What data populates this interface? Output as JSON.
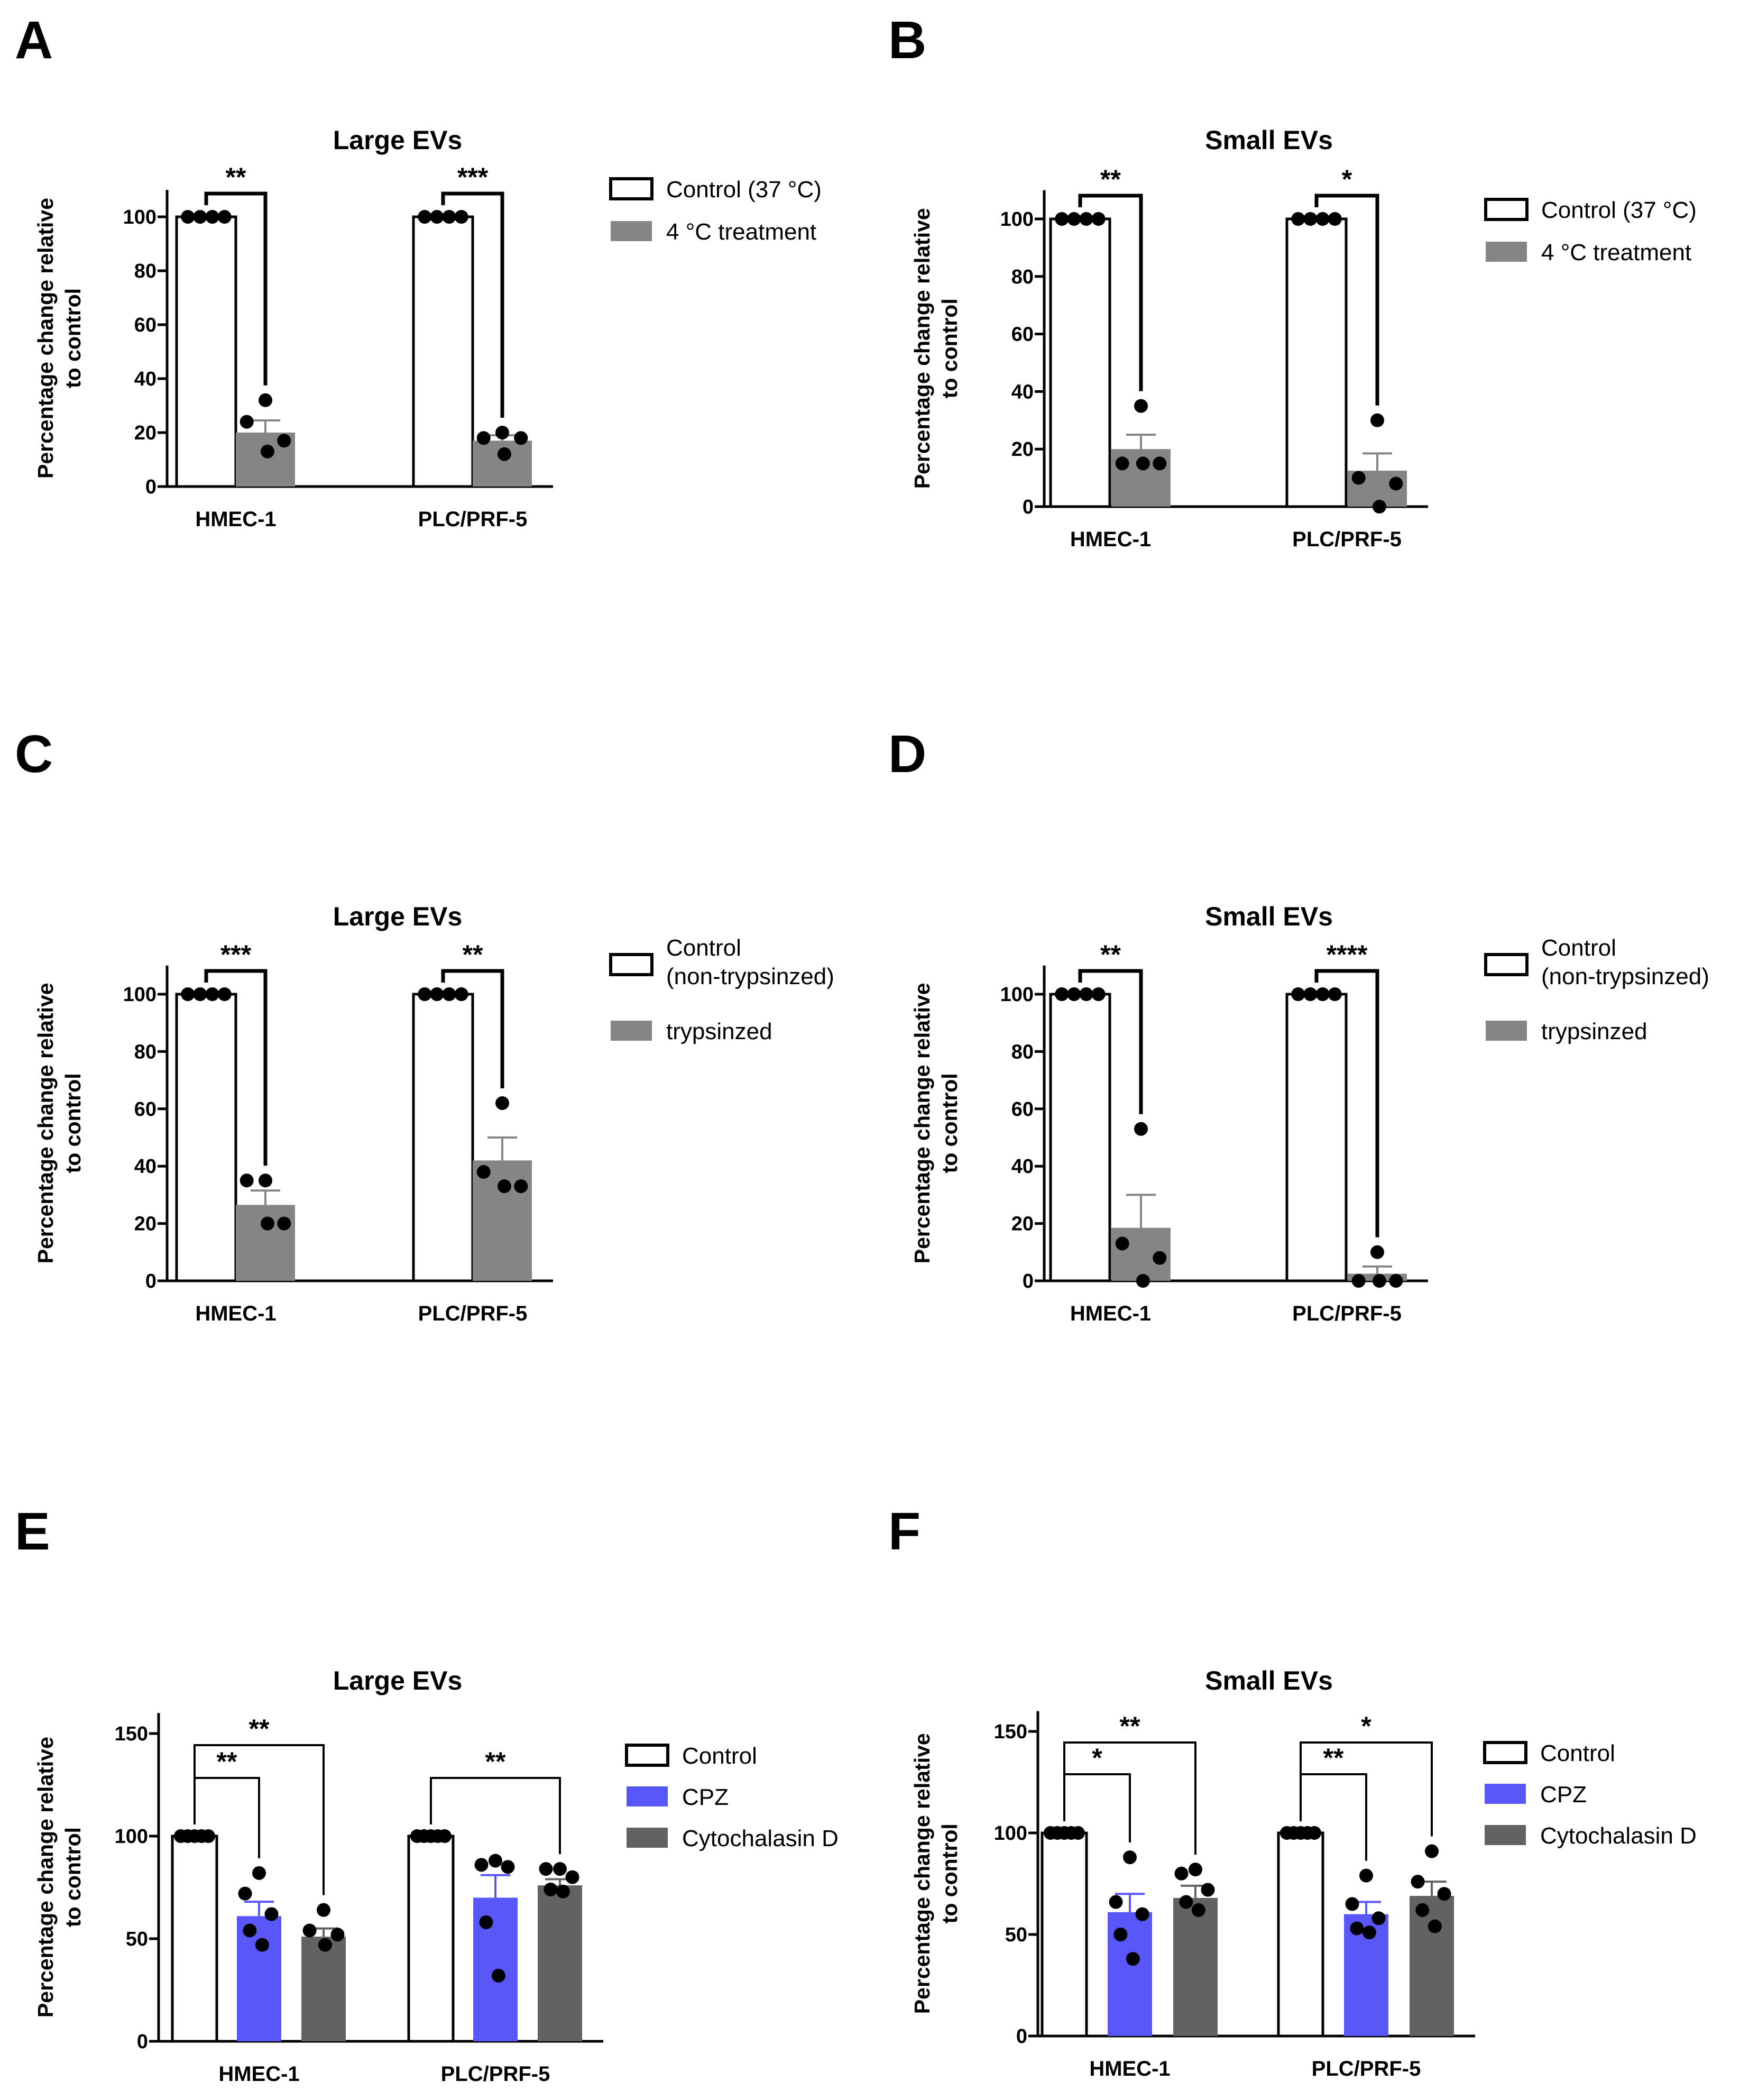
{
  "chart_data": [
    {
      "panel": "A",
      "type": "bar",
      "title": "Large EVs",
      "ylabel": [
        "Percentage change relative",
        "to control"
      ],
      "ylim": [
        0,
        110
      ],
      "yticks": [
        0,
        20,
        40,
        60,
        80,
        100
      ],
      "categories": [
        "HMEC-1",
        "PLC/PRF-5"
      ],
      "series": [
        {
          "name": "Control (37 °C)",
          "color": "#ffffff",
          "values": [
            100,
            100
          ],
          "sem": [
            0,
            0
          ],
          "points": [
            [
              100,
              100,
              100,
              100
            ],
            [
              100,
              100,
              100,
              100
            ]
          ]
        },
        {
          "name": "4 °C treatment",
          "color": "#858585",
          "values": [
            20,
            17
          ],
          "sem": [
            4.5,
            2
          ],
          "points": [
            [
              32,
              24,
              17,
              13
            ],
            [
              20,
              18,
              18,
              12
            ]
          ]
        }
      ],
      "significance": [
        {
          "category": 0,
          "from": 0,
          "to": 1,
          "label": "**"
        },
        {
          "category": 1,
          "from": 0,
          "to": 1,
          "label": "***"
        }
      ]
    },
    {
      "panel": "B",
      "type": "bar",
      "title": "Small EVs",
      "ylabel": [
        "Percentage change relative",
        "to control"
      ],
      "ylim": [
        0,
        110
      ],
      "yticks": [
        0,
        20,
        40,
        60,
        80,
        100
      ],
      "categories": [
        "HMEC-1",
        "PLC/PRF-5"
      ],
      "series": [
        {
          "name": "Control (37 °C)",
          "color": "#ffffff",
          "values": [
            100,
            100
          ],
          "sem": [
            0,
            0
          ],
          "points": [
            [
              100,
              100,
              100,
              100
            ],
            [
              100,
              100,
              100,
              100
            ]
          ]
        },
        {
          "name": "4 °C treatment",
          "color": "#858585",
          "values": [
            20,
            12.5
          ],
          "sem": [
            5,
            6
          ],
          "points": [
            [
              35,
              15,
              15,
              15
            ],
            [
              30,
              10,
              8,
              0
            ]
          ]
        }
      ],
      "significance": [
        {
          "category": 0,
          "from": 0,
          "to": 1,
          "label": "**"
        },
        {
          "category": 1,
          "from": 0,
          "to": 1,
          "label": "*"
        }
      ]
    },
    {
      "panel": "C",
      "type": "bar",
      "title": "Large EVs",
      "ylabel": [
        "Percentage change relative",
        "to control"
      ],
      "ylim": [
        0,
        110
      ],
      "yticks": [
        0,
        20,
        40,
        60,
        80,
        100
      ],
      "categories": [
        "HMEC-1",
        "PLC/PRF-5"
      ],
      "series": [
        {
          "name": "Control (non-trypsinzed)",
          "color": "#ffffff",
          "values": [
            100,
            100
          ],
          "sem": [
            0,
            0
          ],
          "points": [
            [
              100,
              100,
              100,
              100
            ],
            [
              100,
              100,
              100,
              100
            ]
          ]
        },
        {
          "name": "trypsinzed",
          "color": "#858585",
          "values": [
            26.5,
            42
          ],
          "sem": [
            5,
            8
          ],
          "points": [
            [
              35,
              35,
              20,
              20
            ],
            [
              62,
              38,
              33,
              33
            ]
          ]
        }
      ],
      "significance": [
        {
          "category": 0,
          "from": 0,
          "to": 1,
          "label": "***"
        },
        {
          "category": 1,
          "from": 0,
          "to": 1,
          "label": "**"
        }
      ]
    },
    {
      "panel": "D",
      "type": "bar",
      "title": "Small EVs",
      "ylabel": [
        "Percentage change relative",
        "to control"
      ],
      "ylim": [
        0,
        110
      ],
      "yticks": [
        0,
        20,
        40,
        60,
        80,
        100
      ],
      "categories": [
        "HMEC-1",
        "PLC/PRF-5"
      ],
      "series": [
        {
          "name": "Control (non-trypsinzed)",
          "color": "#ffffff",
          "values": [
            100,
            100
          ],
          "sem": [
            0,
            0
          ],
          "points": [
            [
              100,
              100,
              100,
              100
            ],
            [
              100,
              100,
              100,
              100
            ]
          ]
        },
        {
          "name": "trypsinzed",
          "color": "#858585",
          "values": [
            18.5,
            2.5
          ],
          "sem": [
            11.5,
            2.5
          ],
          "points": [
            [
              53,
              13,
              8,
              0
            ],
            [
              10,
              0,
              0,
              0
            ]
          ]
        }
      ],
      "significance": [
        {
          "category": 0,
          "from": 0,
          "to": 1,
          "label": "**"
        },
        {
          "category": 1,
          "from": 0,
          "to": 1,
          "label": "****"
        }
      ]
    },
    {
      "panel": "E",
      "type": "bar",
      "title": "Large EVs",
      "ylabel": [
        "Percentage change relative",
        "to control"
      ],
      "ylim": [
        0,
        160
      ],
      "yticks": [
        0,
        50,
        100,
        150
      ],
      "categories": [
        "HMEC-1",
        "PLC/PRF-5"
      ],
      "series": [
        {
          "name": "Control",
          "color": "#ffffff",
          "values": [
            100,
            100
          ],
          "sem": [
            0,
            0
          ],
          "points": [
            [
              100,
              100,
              100,
              100,
              100
            ],
            [
              100,
              100,
              100,
              100,
              100
            ]
          ]
        },
        {
          "name": "CPZ",
          "color": "#5856f7",
          "values": [
            61,
            70
          ],
          "sem": [
            7,
            11
          ],
          "points": [
            [
              82,
              72,
              62,
              54,
              47
            ],
            [
              88,
              86,
              85,
              58,
              32
            ]
          ]
        },
        {
          "name": "Cytochalasin D",
          "color": "#626262",
          "values": [
            51,
            76
          ],
          "sem": [
            4,
            3
          ],
          "points": [
            [
              64,
              54,
              52,
              47
            ],
            [
              84,
              84,
              80,
              74,
              73
            ]
          ]
        }
      ],
      "significance": [
        {
          "category": 0,
          "from": 0,
          "to": 1,
          "label": "**"
        },
        {
          "category": 0,
          "from": 0,
          "to": 2,
          "label": "**"
        },
        {
          "category": 1,
          "from": 0,
          "to": 2,
          "label": "**"
        }
      ]
    },
    {
      "panel": "F",
      "type": "bar",
      "title": "Small EVs",
      "ylabel": [
        "Percentage change relative",
        "to control"
      ],
      "ylim": [
        0,
        160
      ],
      "yticks": [
        0,
        50,
        100,
        150
      ],
      "categories": [
        "HMEC-1",
        "PLC/PRF-5"
      ],
      "series": [
        {
          "name": "Control",
          "color": "#ffffff",
          "values": [
            100,
            100
          ],
          "sem": [
            0,
            0
          ],
          "points": [
            [
              100,
              100,
              100,
              100,
              100
            ],
            [
              100,
              100,
              100,
              100,
              100
            ]
          ]
        },
        {
          "name": "CPZ",
          "color": "#5856f7",
          "values": [
            61,
            60
          ],
          "sem": [
            9,
            6
          ],
          "points": [
            [
              88,
              66,
              60,
              50,
              38
            ],
            [
              79,
              65,
              58,
              53,
              51
            ]
          ]
        },
        {
          "name": "Cytochalasin D",
          "color": "#626262",
          "values": [
            68,
            69
          ],
          "sem": [
            6,
            7
          ],
          "points": [
            [
              82,
              80,
              72,
              66,
              62
            ],
            [
              91,
              76,
              70,
              62,
              54
            ]
          ]
        }
      ],
      "significance": [
        {
          "category": 0,
          "from": 0,
          "to": 1,
          "label": "*"
        },
        {
          "category": 0,
          "from": 0,
          "to": 2,
          "label": "**"
        },
        {
          "category": 1,
          "from": 0,
          "to": 1,
          "label": "**"
        },
        {
          "category": 1,
          "from": 0,
          "to": 2,
          "label": "*"
        }
      ]
    }
  ]
}
